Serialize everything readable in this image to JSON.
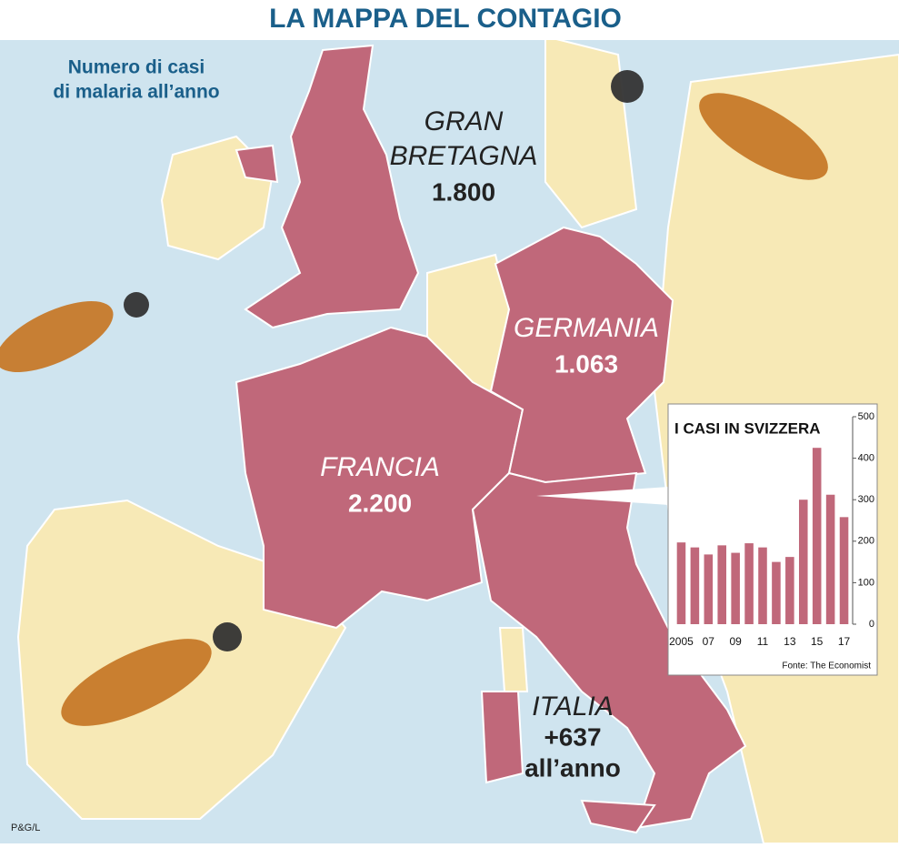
{
  "header": {
    "title": "LA MAPPA DEL CONTAGIO",
    "subtitle": [
      "Numero di casi",
      "di malaria all’anno"
    ]
  },
  "countries": [
    {
      "name": [
        "GRAN",
        "BRETAGNA"
      ],
      "value": "1.800"
    },
    {
      "name": [
        "GERMANIA"
      ],
      "value": "1.063"
    },
    {
      "name": [
        "FRANCIA"
      ],
      "value": "2.200"
    },
    {
      "name": [
        "ITALIA"
      ],
      "value": "+637",
      "note": "all’anno"
    }
  ],
  "chart_data": {
    "type": "bar",
    "title": "I CASI IN SVIZZERA",
    "categories": [
      "2005",
      null,
      "07",
      null,
      "09",
      null,
      "11",
      null,
      "13",
      null,
      "15",
      null,
      "17"
    ],
    "values": [
      197,
      185,
      168,
      190,
      172,
      195,
      185,
      150,
      162,
      300,
      425,
      312,
      258
    ],
    "color": "#c0687a",
    "ylim": [
      0,
      500
    ],
    "yticks": [
      0,
      100,
      200,
      300,
      400,
      500
    ],
    "source": "Fonte: The Economist"
  },
  "credit": "P&G/L"
}
